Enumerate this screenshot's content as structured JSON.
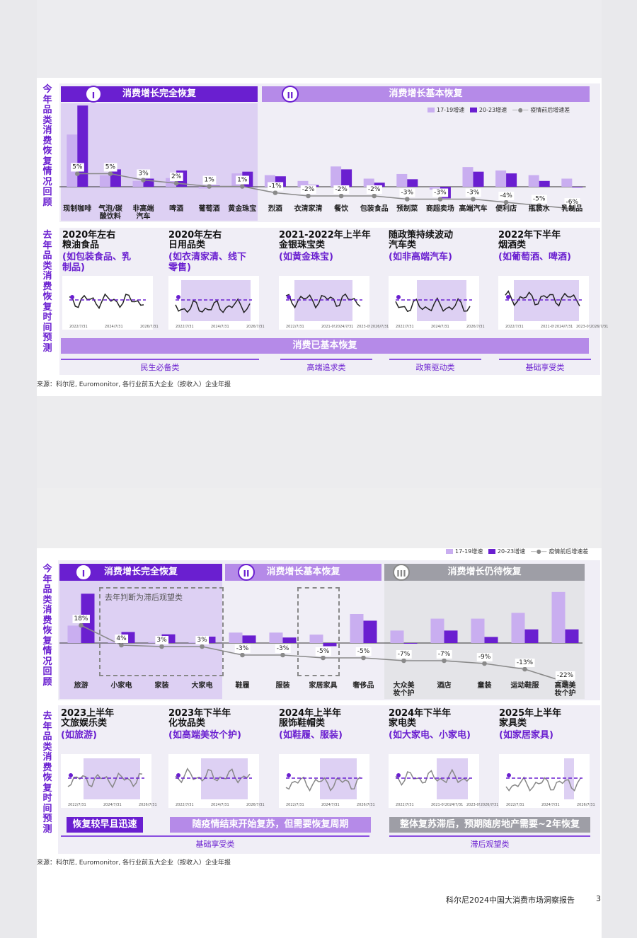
{
  "footer": {
    "report": "科尔尼2024中国大消费市场洞察报告",
    "page": "3"
  },
  "legend": {
    "a": "17-19增速",
    "b": "20-23增速",
    "c": "疫情前后增速差"
  },
  "colors": {
    "light": "#c9aef0",
    "dark": "#6a1fd0",
    "line": "#888888",
    "accent": "#6a1fd0"
  },
  "source": "来源：科尔尼, Euromonitor, 各行业前五大企业（按收入）企业年报",
  "top": {
    "vlabel_top": "今年品类消费恢复情况回顾",
    "vlabel_bottom": "去年品类消费恢复时间预测",
    "banner1": {
      "roman": "I",
      "text": "消费增长完全恢复"
    },
    "banner2": {
      "roman": "II",
      "text": "消费增长基本恢复"
    },
    "long_banner": "消费已基本恢复",
    "groups": [
      "民生必备类",
      "高端追求类",
      "政策驱动类",
      "基础享受类"
    ],
    "minis": [
      {
        "title": "2020年左右\n粮油食品",
        "sub": "(如包装食品、乳\n制品)",
        "ticks": [
          "2022/7/31",
          "2024/7/31",
          "2026/7/31"
        ]
      },
      {
        "title": "2020年左右\n日用品类",
        "sub": "(如衣清家清、线下\n零售)",
        "ticks": [
          "2022/7/31",
          "2024/7/31",
          "2026/7/31"
        ]
      },
      {
        "title": "2021-2022年上半年\n金银珠宝类",
        "sub": "(如黄金珠宝)",
        "ticks": [
          "2022/7/31",
          "2021-0!2024/7/31",
          "2023-0!2026/7/31"
        ]
      },
      {
        "title": "随政策持续波动\n汽车类",
        "sub": "(如非高端汽车)",
        "ticks": [
          "2022/7/31",
          "2024/7/31",
          "2026/7/31"
        ]
      },
      {
        "title": "2022年下半年\n烟酒类",
        "sub": "(如葡萄酒、啤酒)",
        "ticks": [
          "2022/7/31",
          "2021-0!2024/7/31",
          "2023-0!2026/7/31"
        ]
      }
    ]
  },
  "bottom": {
    "vlabel_top": "今年品类消费恢复情况回顾",
    "vlabel_bottom": "去年品类消费恢复时间预测",
    "banner1": {
      "roman": "I",
      "text": "消费增长完全恢复"
    },
    "banner2": {
      "roman": "II",
      "text": "消费增长基本恢复"
    },
    "banner3": {
      "roman": "III",
      "text": "消费增长仍待恢复"
    },
    "note": "去年判断为滞后观望类",
    "notes": [
      "恢复较早且迅速",
      "随疫情结束开始复苏，但需要恢复周期",
      "整体复苏滞后，预期随房地产需要~2年恢复"
    ],
    "groups": [
      "基础享受类",
      "滞后观望类"
    ],
    "minis": [
      {
        "title": "2023上半年\n文旅娱乐类",
        "sub": "(如旅游)",
        "ticks": [
          "2022/7/31",
          "2024/7/31",
          "2026/7/31"
        ]
      },
      {
        "title": "2023年下半年\n化妆品类",
        "sub": "(如高端美妆个护)",
        "ticks": [
          "2022/7/31",
          "2024/7/31",
          "2026/7/31"
        ]
      },
      {
        "title": "2024年上半年\n服饰鞋帽类",
        "sub": "(如鞋履、服装)",
        "ticks": [
          "2022/7/31",
          "2024/7/31",
          "2026/7/31"
        ]
      },
      {
        "title": "2024年下半年\n家电类",
        "sub": "(如大家电、小家电)",
        "ticks": [
          "2022/7/31",
          "2021-0!2024/7/31",
          "2023-0!2026/7/31"
        ]
      },
      {
        "title": "2025年上半年\n家具类",
        "sub": "(如家居家具)",
        "ticks": [
          "2022/7/31",
          "2024/7/31",
          "2026/7/31"
        ]
      }
    ]
  },
  "chart_data": [
    {
      "type": "bar",
      "categories": [
        "现制咖啡",
        "气泡/碳\n酸饮料",
        "非高端\n汽车",
        "啤酒",
        "葡萄酒",
        "黄金珠宝",
        "烈酒",
        "衣清家清",
        "餐饮",
        "包装食品",
        "预制菜",
        "商超卖场",
        "高端汽车",
        "便利店",
        "瓶装水",
        "乳制品"
      ],
      "series": [
        {
          "name": "17-19增速",
          "values": [
            9,
            2,
            1,
            1.5,
            -0.3,
            2.3,
            2,
            1,
            3.5,
            1.4,
            2.2,
            -0.5,
            3.4,
            2.8,
            2,
            1.4
          ]
        },
        {
          "name": "20-23增速",
          "values": [
            14,
            3,
            1.4,
            2.8,
            0.2,
            2.6,
            1.8,
            0.3,
            3,
            0.7,
            1.3,
            -2,
            2.6,
            2.3,
            1,
            0
          ]
        },
        {
          "name": "疫情前后增速差",
          "values": [
            5,
            5,
            3,
            2,
            1,
            1,
            -1,
            -2,
            -2,
            -2,
            -3,
            -3,
            -3,
            -4,
            -5,
            -6
          ],
          "labels": [
            "5%",
            "5%",
            "3%",
            "2%",
            "1%",
            "1%",
            "-1%",
            "-2%",
            "-2%",
            "-2%",
            "-3%",
            "-3%",
            "-3%",
            "-4%",
            "-5%",
            "-6%"
          ]
        }
      ]
    },
    {
      "type": "bar",
      "categories": [
        "旅游",
        "小家电",
        "家装",
        "大家电",
        "鞋履",
        "服装",
        "家居家具",
        "奢侈品",
        "大众美\n妆个护",
        "酒店",
        "童装",
        "运动鞋服",
        "高端美\n妆个护"
      ],
      "series": [
        {
          "name": "17-19增速",
          "values": [
            6,
            0.3,
            0.4,
            0.3,
            3.6,
            3.6,
            2.9,
            10,
            4.3,
            8.4,
            8.4,
            10.4,
            17.6
          ]
        },
        {
          "name": "20-23增速",
          "values": [
            17,
            3.8,
            3,
            2.2,
            2.6,
            1.9,
            -1.1,
            7.7,
            -0.2,
            4.3,
            2.1,
            4.7,
            4.7
          ]
        },
        {
          "name": "疫情前后增速差",
          "values": [
            18,
            4,
            3,
            3,
            -3,
            -3,
            -5,
            -5,
            -7,
            -7,
            -9,
            -13,
            -22
          ],
          "labels": [
            "18%",
            "4%",
            "3%",
            "3%",
            "-3%",
            "-3%",
            "-5%",
            "-5%",
            "-7%",
            "-7%",
            "-9%",
            "-13%",
            "-22%"
          ]
        }
      ]
    }
  ]
}
